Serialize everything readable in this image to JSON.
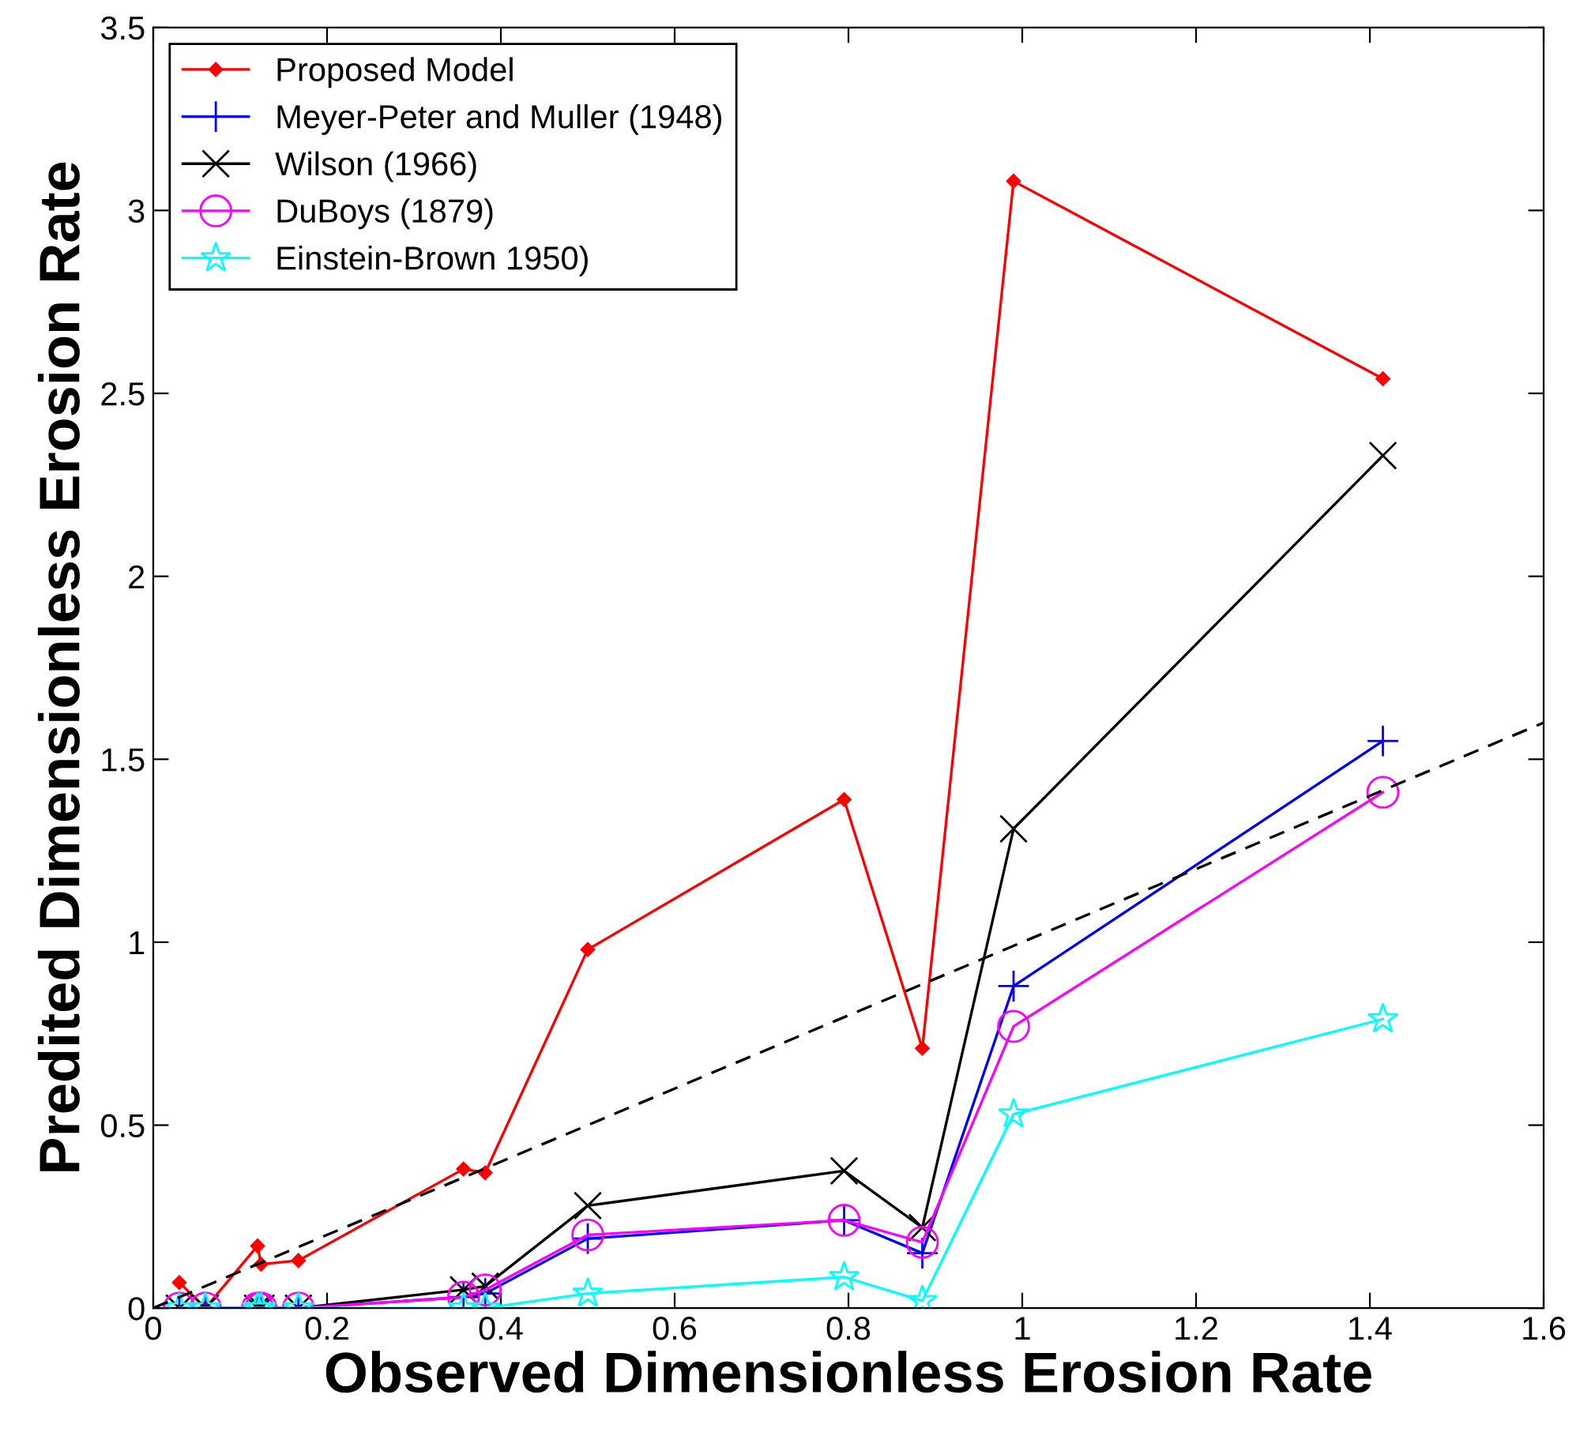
{
  "chart_data": {
    "type": "line",
    "xlabel": "Observed Dimensionless Erosion Rate",
    "ylabel": "Predited Dimensionless Erosion Rate",
    "x": [
      0.03,
      0.06,
      0.12,
      0.124,
      0.167,
      0.357,
      0.382,
      0.5,
      0.795,
      0.885,
      0.99,
      1.415
    ],
    "series": [
      {
        "name": "Proposed Model",
        "color": "#ff0000",
        "marker": "diamond",
        "values": [
          0.07,
          0.0,
          0.17,
          0.12,
          0.13,
          0.38,
          0.37,
          0.98,
          1.39,
          0.71,
          3.08,
          2.54
        ]
      },
      {
        "name": "Meyer-Peter and Muller (1948)",
        "color": "#0000ff",
        "marker": "plus",
        "values": [
          0,
          0,
          0,
          0,
          0,
          0.03,
          0.04,
          0.19,
          0.24,
          0.15,
          0.88,
          1.55
        ]
      },
      {
        "name": "Wilson (1966)",
        "color": "#000000",
        "marker": "cross",
        "values": [
          0,
          0,
          0,
          0,
          0,
          0.05,
          0.06,
          0.28,
          0.375,
          0.22,
          1.31,
          2.33
        ]
      },
      {
        "name": "DuBoys (1879)",
        "color": "#ff00ff",
        "marker": "circle",
        "values": [
          0,
          0,
          0,
          0,
          0,
          0.03,
          0.05,
          0.2,
          0.24,
          0.18,
          0.77,
          1.41
        ]
      },
      {
        "name": "Einstein-Brown 1950)",
        "color": "#00ffff",
        "marker": "star",
        "values": [
          0,
          0,
          0,
          0,
          0,
          0.0,
          0.0,
          0.04,
          0.085,
          0.02,
          0.53,
          0.79
        ]
      },
      {
        "color": "#000000",
        "marker": "none",
        "line_style": "dashed",
        "x": [
          0,
          1.6
        ],
        "values": [
          0,
          1.6
        ]
      }
    ],
    "xlim": [
      0,
      1.6
    ],
    "xticks": [
      0,
      0.2,
      0.4,
      0.6,
      0.8,
      1,
      1.2,
      1.4,
      1.6
    ],
    "ylim": [
      0,
      3.5
    ],
    "yticks": [
      0,
      0.5,
      1,
      1.5,
      2,
      2.5,
      3,
      3.5
    ],
    "grid": false,
    "legend": "top left"
  }
}
